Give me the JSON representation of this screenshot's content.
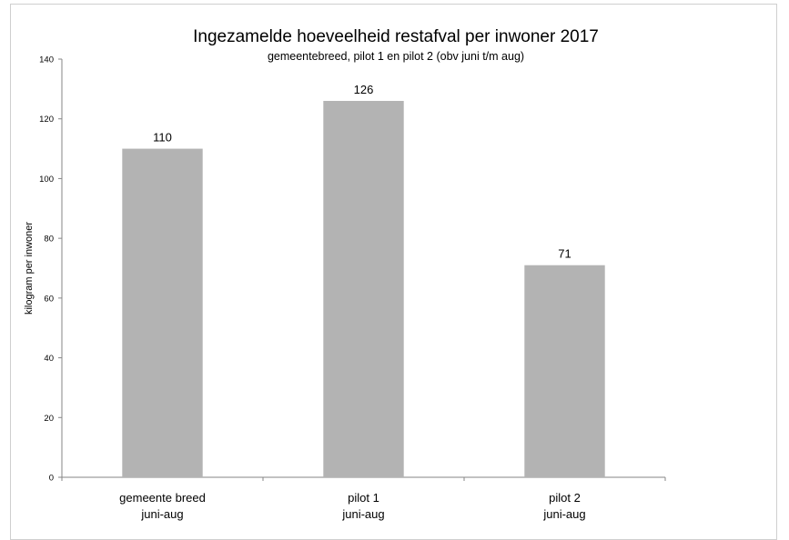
{
  "chart_data": {
    "type": "bar",
    "title": "Ingezamelde hoeveelheid restafval per inwoner 2017",
    "subtitle": "gemeentebreed, pilot 1 en pilot 2 (obv juni t/m aug)",
    "ylabel": "kilogram per inwoner",
    "xlabel": "",
    "ylim": [
      0,
      140
    ],
    "yticks": [
      0,
      20,
      40,
      60,
      80,
      100,
      120,
      140
    ],
    "categories": [
      [
        "gemeente breed",
        "juni-aug"
      ],
      [
        "pilot 1",
        "juni-aug"
      ],
      [
        "pilot 2",
        "juni-aug"
      ]
    ],
    "values": [
      110,
      126,
      71
    ],
    "data_labels": [
      "110",
      "126",
      "71"
    ],
    "bar_color": "#b3b3b3",
    "grid": false,
    "legend": "none"
  }
}
